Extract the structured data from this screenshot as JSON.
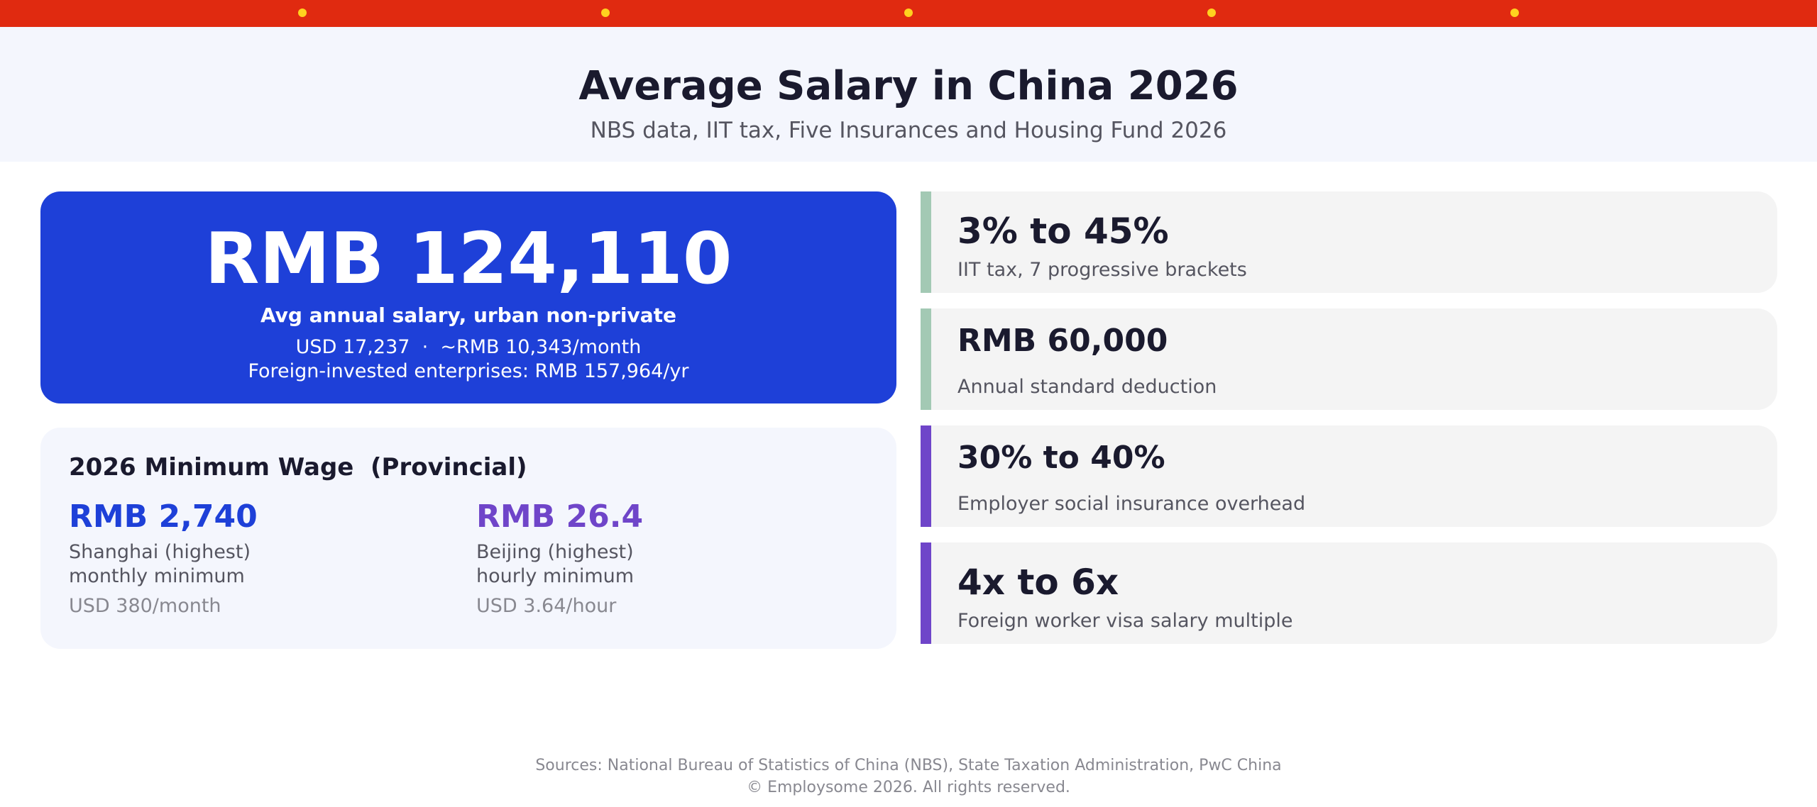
{
  "colors": {
    "flag_red": "#e02a10",
    "flag_star": "#ffd21f",
    "hero_blue": "#1e40d8",
    "accent_purple": "#6f45c9",
    "accent_green": "#a3c9b4"
  },
  "header": {
    "title": "Average Salary in China 2026",
    "subtitle": "NBS data, IIT tax, Five Insurances and Housing Fund 2026"
  },
  "hero": {
    "value": "RMB 124,110",
    "label": "Avg annual salary, urban non-private",
    "usd_line": "USD 17,237  ·  ~RMB 10,343/month",
    "fie_line": "Foreign-invested enterprises: RMB 157,964/yr"
  },
  "min_wage": {
    "title": "2026 Minimum Wage  (Provincial)",
    "items": [
      {
        "value": "RMB 2,740",
        "desc_line1": "Shanghai (highest)",
        "desc_line2": "monthly minimum",
        "usd": "USD 380/month"
      },
      {
        "value": "RMB 26.4",
        "desc_line1": "Beijing (highest)",
        "desc_line2": "hourly minimum",
        "usd": "USD 3.64/hour"
      }
    ]
  },
  "stats": [
    {
      "value": "3% to 45%",
      "desc": "IIT tax, 7 progressive brackets"
    },
    {
      "value": "RMB 60,000",
      "desc": "Annual standard deduction"
    },
    {
      "value": "30% to 40%",
      "desc": "Employer social insurance overhead"
    },
    {
      "value": "4x to 6x",
      "desc": "Foreign worker visa salary multiple"
    }
  ],
  "footer": {
    "sources": "Sources: National Bureau of Statistics of China (NBS), State Taxation Administration, PwC China",
    "copyright": "© Employsome 2026. All rights reserved."
  }
}
